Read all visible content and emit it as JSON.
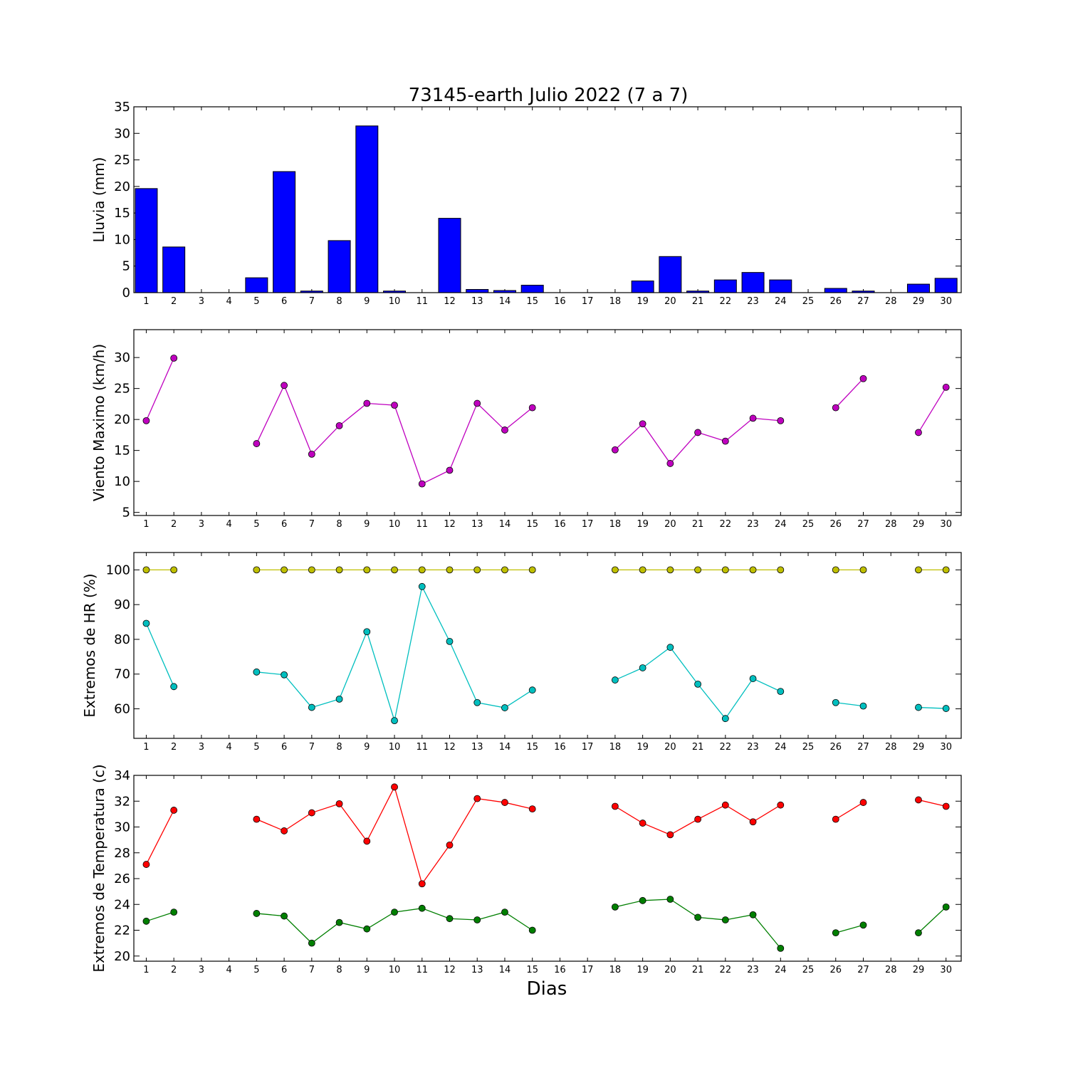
{
  "title": "73145-earth Julio 2022  (7 a 7)",
  "xlabel": "Dias",
  "chart_data": [
    {
      "type": "bar",
      "ylabel": "Lluvia (mm)",
      "ylim": [
        0,
        35
      ],
      "yticks": [
        0,
        5,
        10,
        15,
        20,
        25,
        30,
        35
      ],
      "x": [
        1,
        2,
        3,
        4,
        5,
        6,
        7,
        8,
        9,
        10,
        11,
        12,
        13,
        14,
        15,
        16,
        17,
        18,
        19,
        20,
        21,
        22,
        23,
        24,
        25,
        26,
        27,
        28,
        29,
        30
      ],
      "series": [
        {
          "color": "#0000ff",
          "values": [
            19.6,
            8.6,
            0,
            0,
            2.8,
            22.8,
            0.3,
            9.8,
            31.4,
            0.3,
            0,
            14.0,
            0.6,
            0.4,
            1.4,
            0,
            0,
            0,
            2.2,
            6.8,
            0.3,
            2.4,
            3.8,
            2.4,
            0,
            0.8,
            0.3,
            0,
            1.6,
            2.7
          ]
        }
      ]
    },
    {
      "type": "line",
      "ylabel": "Viento Maximo (km/h)",
      "ylim": [
        4.5,
        34.5
      ],
      "yticks": [
        5,
        10,
        15,
        20,
        25,
        30
      ],
      "x": [
        1,
        2,
        3,
        4,
        5,
        6,
        7,
        8,
        9,
        10,
        11,
        12,
        13,
        14,
        15,
        16,
        17,
        18,
        19,
        20,
        21,
        22,
        23,
        24,
        25,
        26,
        27,
        28,
        29,
        30
      ],
      "series": [
        {
          "color": "#bf00bf",
          "values": [
            19.8,
            29.9,
            null,
            null,
            16.1,
            25.5,
            14.4,
            19.0,
            22.6,
            22.3,
            9.6,
            11.8,
            22.6,
            18.3,
            21.9,
            null,
            null,
            15.1,
            19.3,
            12.9,
            17.9,
            16.5,
            20.2,
            19.8,
            null,
            21.9,
            26.6,
            null,
            17.9,
            25.2
          ]
        }
      ]
    },
    {
      "type": "line",
      "ylabel": "Extremos de HR (%)",
      "ylim": [
        51.5,
        105
      ],
      "yticks": [
        60,
        70,
        80,
        90,
        100
      ],
      "x": [
        1,
        2,
        3,
        4,
        5,
        6,
        7,
        8,
        9,
        10,
        11,
        12,
        13,
        14,
        15,
        16,
        17,
        18,
        19,
        20,
        21,
        22,
        23,
        24,
        25,
        26,
        27,
        28,
        29,
        30
      ],
      "series": [
        {
          "color": "#bfbf00",
          "values": [
            100,
            100,
            null,
            null,
            100,
            100,
            100,
            100,
            100,
            100,
            100,
            100,
            100,
            100,
            100,
            null,
            null,
            100,
            100,
            100,
            100,
            100,
            100,
            100,
            null,
            100,
            100,
            null,
            100,
            100
          ]
        },
        {
          "color": "#00bfbf",
          "values": [
            84.6,
            66.4,
            null,
            null,
            70.6,
            69.8,
            60.4,
            62.8,
            82.2,
            56.6,
            95.2,
            79.4,
            61.8,
            60.3,
            65.4,
            null,
            null,
            68.3,
            71.8,
            77.7,
            67.1,
            57.2,
            68.7,
            65.0,
            null,
            61.8,
            60.8,
            null,
            60.4,
            60.1
          ]
        }
      ]
    },
    {
      "type": "line",
      "ylabel": "Extremos de Temperatura (c)",
      "ylim": [
        19.6,
        34
      ],
      "yticks": [
        20,
        22,
        24,
        26,
        28,
        30,
        32,
        34
      ],
      "x": [
        1,
        2,
        3,
        4,
        5,
        6,
        7,
        8,
        9,
        10,
        11,
        12,
        13,
        14,
        15,
        16,
        17,
        18,
        19,
        20,
        21,
        22,
        23,
        24,
        25,
        26,
        27,
        28,
        29,
        30
      ],
      "series": [
        {
          "color": "#ff0000",
          "values": [
            27.1,
            31.3,
            null,
            null,
            30.6,
            29.7,
            31.1,
            31.8,
            28.9,
            33.1,
            25.6,
            28.6,
            32.2,
            31.9,
            31.4,
            null,
            null,
            31.6,
            30.3,
            29.4,
            30.6,
            31.7,
            30.4,
            31.7,
            null,
            30.6,
            31.9,
            null,
            32.1,
            31.6
          ]
        },
        {
          "color": "#007f00",
          "values": [
            22.7,
            23.4,
            null,
            null,
            23.3,
            23.1,
            21.0,
            22.6,
            22.1,
            23.4,
            23.7,
            22.9,
            22.8,
            23.4,
            22.0,
            null,
            null,
            23.8,
            24.3,
            24.4,
            23.0,
            22.8,
            23.2,
            20.6,
            null,
            21.8,
            22.4,
            null,
            21.8,
            23.8
          ]
        }
      ]
    }
  ]
}
